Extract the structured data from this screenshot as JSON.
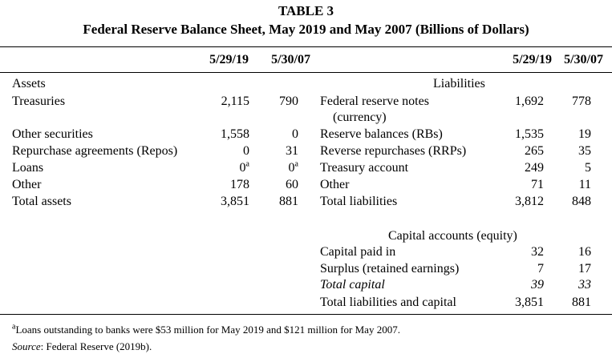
{
  "table_number": "TABLE 3",
  "title": "Federal Reserve Balance Sheet, May 2019 and May 2007 (Billions of Dollars)",
  "columns": [
    "5/29/19",
    "5/30/07"
  ],
  "assets": {
    "heading": "Assets",
    "rows": [
      {
        "label": "Treasuries",
        "v1": "2,115",
        "v2": "790"
      },
      {
        "label": "Other securities",
        "v1": "1,558",
        "v2": "0"
      },
      {
        "label": "Repurchase agreements (Repos)",
        "v1": "0",
        "v2": "31"
      },
      {
        "label": "Loans",
        "v1": "0",
        "v2": "0",
        "sup": "a"
      },
      {
        "label": "Other",
        "v1": "178",
        "v2": "60"
      },
      {
        "label": "Total assets",
        "v1": "3,851",
        "v2": "881"
      }
    ]
  },
  "liabilities": {
    "heading": "Liabilities",
    "rows": [
      {
        "label": "Federal reserve notes",
        "label2": "(currency)",
        "v1": "1,692",
        "v2": "778"
      },
      {
        "label": "Reserve balances (RBs)",
        "v1": "1,535",
        "v2": "19"
      },
      {
        "label": "Reverse repurchases (RRPs)",
        "v1": "265",
        "v2": "35"
      },
      {
        "label": "Treasury account",
        "v1": "249",
        "v2": "5"
      },
      {
        "label": "Other",
        "v1": "71",
        "v2": "11"
      },
      {
        "label": "Total liabilities",
        "v1": "3,812",
        "v2": "848"
      }
    ]
  },
  "capital": {
    "heading": "Capital accounts (equity)",
    "rows": [
      {
        "label": "Capital paid in",
        "v1": "32",
        "v2": "16"
      },
      {
        "label": "Surplus (retained earnings)",
        "v1": "7",
        "v2": "17"
      },
      {
        "label": "Total capital",
        "v1": "39",
        "v2": "33",
        "italic": true
      },
      {
        "label": "Total liabilities and capital",
        "v1": "3,851",
        "v2": "881"
      }
    ]
  },
  "footnote": {
    "marker": "a",
    "text": "Loans outstanding to banks were $53 million for May 2019 and $121 million for May 2007."
  },
  "source": {
    "label": "Source",
    "text": ": Federal Reserve (2019b)."
  }
}
